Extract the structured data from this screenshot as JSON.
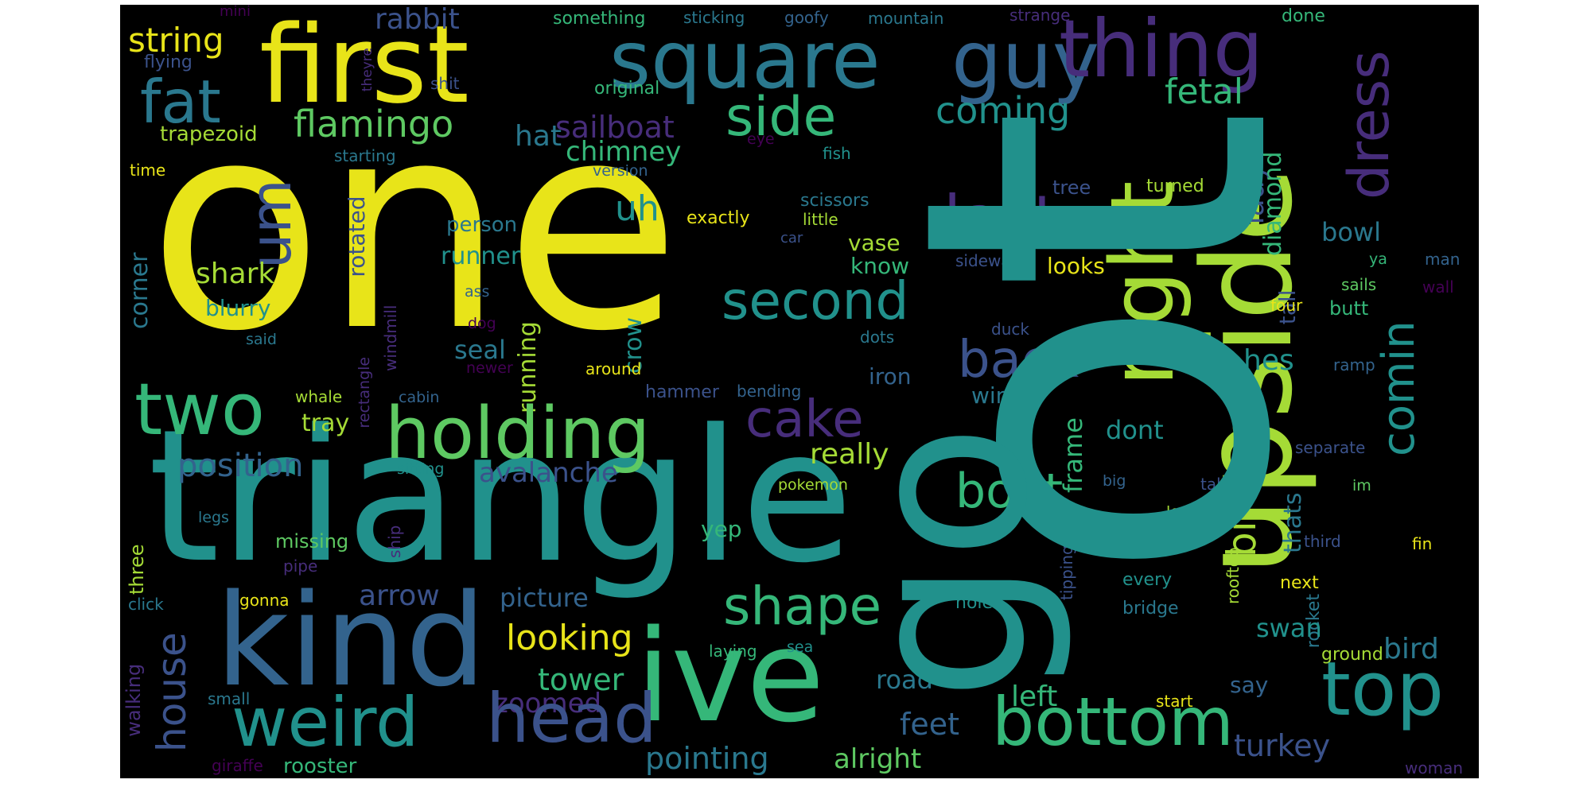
{
  "palette": {
    "yellow": "#e8e419",
    "lime": "#a5db36",
    "green": "#5ec962",
    "seagreen": "#35b779",
    "teal": "#21918c",
    "cyan": "#2a788e",
    "blue": "#33638d",
    "indigo": "#3b528b",
    "purple": "#472d7b",
    "violet": "#440154"
  },
  "words": [
    {
      "text": "one",
      "color": "yellow"
    },
    {
      "text": "triangle",
      "color": "teal"
    },
    {
      "text": "kind",
      "color": "blue"
    },
    {
      "text": "first",
      "color": "yellow"
    },
    {
      "text": "square",
      "color": "cyan"
    },
    {
      "text": "guy",
      "color": "blue"
    },
    {
      "text": "thing",
      "color": "purple"
    },
    {
      "text": "fat",
      "color": "cyan"
    },
    {
      "text": "string",
      "color": "yellow"
    },
    {
      "text": "rabbit",
      "color": "indigo"
    },
    {
      "text": "mini",
      "color": "violet"
    },
    {
      "text": "something",
      "color": "seagreen"
    },
    {
      "text": "sticking",
      "color": "cyan"
    },
    {
      "text": "goofy",
      "color": "blue"
    },
    {
      "text": "mountain",
      "color": "cyan"
    },
    {
      "text": "strange",
      "color": "purple"
    },
    {
      "text": "done",
      "color": "seagreen"
    },
    {
      "text": "flying",
      "color": "indigo"
    },
    {
      "text": "theyre",
      "color": "purple"
    },
    {
      "text": "shit",
      "color": "indigo"
    },
    {
      "text": "original",
      "color": "seagreen"
    },
    {
      "text": "trapezoid",
      "color": "lime"
    },
    {
      "text": "flamingo",
      "color": "green"
    },
    {
      "text": "hat",
      "color": "cyan"
    },
    {
      "text": "sailboat",
      "color": "purple"
    },
    {
      "text": "side",
      "color": "seagreen"
    },
    {
      "text": "coming",
      "color": "teal"
    },
    {
      "text": "fetal",
      "color": "seagreen"
    },
    {
      "text": "dress",
      "color": "purple"
    },
    {
      "text": "time",
      "color": "yellow"
    },
    {
      "text": "starting",
      "color": "cyan"
    },
    {
      "text": "chimney",
      "color": "seagreen"
    },
    {
      "text": "version",
      "color": "blue"
    },
    {
      "text": "eye",
      "color": "violet"
    },
    {
      "text": "fish",
      "color": "teal"
    },
    {
      "text": "um",
      "color": "indigo"
    },
    {
      "text": "last",
      "color": "purple"
    },
    {
      "text": "right",
      "color": "lime"
    },
    {
      "text": "upside",
      "color": "lime"
    },
    {
      "text": "lady",
      "color": "indigo"
    },
    {
      "text": "diamond",
      "color": "seagreen"
    },
    {
      "text": "tree",
      "color": "indigo"
    },
    {
      "text": "turned",
      "color": "lime"
    },
    {
      "text": "scissors",
      "color": "cyan"
    },
    {
      "text": "little",
      "color": "lime"
    },
    {
      "text": "exactly",
      "color": "yellow"
    },
    {
      "text": "person",
      "color": "cyan"
    },
    {
      "text": "uh",
      "color": "teal"
    },
    {
      "text": "shark",
      "color": "lime"
    },
    {
      "text": "runner",
      "color": "teal"
    },
    {
      "text": "rotated",
      "color": "indigo"
    },
    {
      "text": "vase",
      "color": "lime"
    },
    {
      "text": "car",
      "color": "indigo"
    },
    {
      "text": "know",
      "color": "seagreen"
    },
    {
      "text": "sideways",
      "color": "indigo"
    },
    {
      "text": "looks",
      "color": "yellow"
    },
    {
      "text": "tall",
      "color": "indigo"
    },
    {
      "text": "bowl",
      "color": "cyan"
    },
    {
      "text": "ya",
      "color": "seagreen"
    },
    {
      "text": "man",
      "color": "blue"
    },
    {
      "text": "wall",
      "color": "violet"
    },
    {
      "text": "blurry",
      "color": "teal"
    },
    {
      "text": "corner",
      "color": "cyan"
    },
    {
      "text": "said",
      "color": "cyan"
    },
    {
      "text": "windmill",
      "color": "purple"
    },
    {
      "text": "ass",
      "color": "blue"
    },
    {
      "text": "dog",
      "color": "violet"
    },
    {
      "text": "second",
      "color": "teal"
    },
    {
      "text": "crow",
      "color": "teal"
    },
    {
      "text": "running",
      "color": "lime"
    },
    {
      "text": "seal",
      "color": "cyan"
    },
    {
      "text": "dots",
      "color": "cyan"
    },
    {
      "text": "duck",
      "color": "indigo"
    },
    {
      "text": "back",
      "color": "indigo"
    },
    {
      "text": "crabby",
      "color": "lime"
    },
    {
      "text": "hes",
      "color": "teal"
    },
    {
      "text": "four",
      "color": "yellow"
    },
    {
      "text": "butt",
      "color": "seagreen"
    },
    {
      "text": "sails",
      "color": "green"
    },
    {
      "text": "ramp",
      "color": "blue"
    },
    {
      "text": "rectangle",
      "color": "purple"
    },
    {
      "text": "newer",
      "color": "violet"
    },
    {
      "text": "around",
      "color": "yellow"
    },
    {
      "text": "iron",
      "color": "blue"
    },
    {
      "text": "comin",
      "color": "teal"
    },
    {
      "text": "two",
      "color": "seagreen"
    },
    {
      "text": "holding",
      "color": "green"
    },
    {
      "text": "cake",
      "color": "purple"
    },
    {
      "text": "whale",
      "color": "lime"
    },
    {
      "text": "cabin",
      "color": "blue"
    },
    {
      "text": "hammer",
      "color": "indigo"
    },
    {
      "text": "bending",
      "color": "blue"
    },
    {
      "text": "wings",
      "color": "cyan"
    },
    {
      "text": "tray",
      "color": "lime"
    },
    {
      "text": "frame",
      "color": "seagreen"
    },
    {
      "text": "dont",
      "color": "teal"
    },
    {
      "text": "really",
      "color": "lime"
    },
    {
      "text": "separate",
      "color": "indigo"
    },
    {
      "text": "position",
      "color": "blue"
    },
    {
      "text": "avalanche",
      "color": "indigo"
    },
    {
      "text": "sitting",
      "color": "teal"
    },
    {
      "text": "pokemon",
      "color": "lime"
    },
    {
      "text": "boat",
      "color": "seagreen"
    },
    {
      "text": "birthday",
      "color": "lime"
    },
    {
      "text": "taking",
      "color": "indigo"
    },
    {
      "text": "big",
      "color": "blue"
    },
    {
      "text": "im",
      "color": "green"
    },
    {
      "text": "legs",
      "color": "cyan"
    },
    {
      "text": "ship",
      "color": "purple"
    },
    {
      "text": "level",
      "color": "lime"
    },
    {
      "text": "missing",
      "color": "green"
    },
    {
      "text": "yep",
      "color": "seagreen"
    },
    {
      "text": "thats",
      "color": "cyan"
    },
    {
      "text": "tipping",
      "color": "indigo"
    },
    {
      "text": "third",
      "color": "indigo"
    },
    {
      "text": "fin",
      "color": "yellow"
    },
    {
      "text": "pipe",
      "color": "purple"
    },
    {
      "text": "three",
      "color": "lime"
    },
    {
      "text": "rooftop",
      "color": "lime"
    },
    {
      "text": "arrow",
      "color": "indigo"
    },
    {
      "text": "every",
      "color": "teal"
    },
    {
      "text": "click",
      "color": "cyan"
    },
    {
      "text": "gonna",
      "color": "yellow"
    },
    {
      "text": "picture",
      "color": "blue"
    },
    {
      "text": "shape",
      "color": "seagreen"
    },
    {
      "text": "holes",
      "color": "teal"
    },
    {
      "text": "bridge",
      "color": "cyan"
    },
    {
      "text": "next",
      "color": "yellow"
    },
    {
      "text": "rocket",
      "color": "cyan"
    },
    {
      "text": "swan",
      "color": "teal"
    },
    {
      "text": "house",
      "color": "indigo"
    },
    {
      "text": "looking",
      "color": "yellow"
    },
    {
      "text": "ive",
      "color": "seagreen"
    },
    {
      "text": "laying",
      "color": "seagreen"
    },
    {
      "text": "sea",
      "color": "teal"
    },
    {
      "text": "ground",
      "color": "lime"
    },
    {
      "text": "bird",
      "color": "cyan"
    },
    {
      "text": "tower",
      "color": "seagreen"
    },
    {
      "text": "road",
      "color": "cyan"
    },
    {
      "text": "top",
      "color": "teal"
    },
    {
      "text": "say",
      "color": "blue"
    },
    {
      "text": "walking",
      "color": "purple"
    },
    {
      "text": "small",
      "color": "cyan"
    },
    {
      "text": "zoomed",
      "color": "purple"
    },
    {
      "text": "left",
      "color": "seagreen"
    },
    {
      "text": "start",
      "color": "yellow"
    },
    {
      "text": "weird",
      "color": "teal"
    },
    {
      "text": "head",
      "color": "indigo"
    },
    {
      "text": "bottom",
      "color": "seagreen"
    },
    {
      "text": "feet",
      "color": "blue"
    },
    {
      "text": "turkey",
      "color": "indigo"
    },
    {
      "text": "alright",
      "color": "green"
    },
    {
      "text": "pointing",
      "color": "cyan"
    },
    {
      "text": "giraffe",
      "color": "violet"
    },
    {
      "text": "rooster",
      "color": "seagreen"
    },
    {
      "text": "woman",
      "color": "purple"
    },
    {
      "text": "ot",
      "color": "teal"
    },
    {
      "text": "go",
      "color": "teal"
    }
  ]
}
